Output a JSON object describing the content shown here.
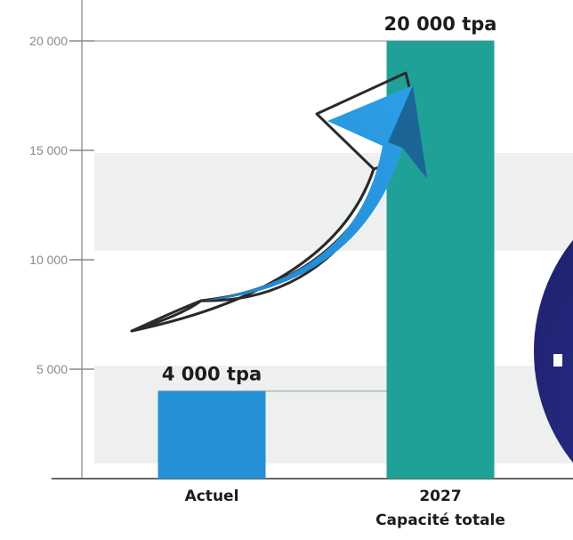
{
  "chart_data": {
    "type": "bar",
    "categories": [
      {
        "lines": [
          "Actuel"
        ]
      },
      {
        "lines": [
          "2027",
          "Capacité totale"
        ]
      }
    ],
    "values": [
      4000,
      20000
    ],
    "value_labels": [
      "4 000 tpa",
      "20 000 tpa"
    ],
    "bar_colors": [
      "#2490d6",
      "#20a197"
    ],
    "y_ticks": [
      {
        "value": 5000,
        "label": "5 000"
      },
      {
        "value": 10000,
        "label": "10 000"
      },
      {
        "value": 15000,
        "label": "15 000"
      },
      {
        "value": 20000,
        "label": "20 000"
      }
    ],
    "ylim": [
      0,
      20000
    ],
    "title": "",
    "xlabel": "",
    "ylabel": "",
    "growth_arrow_color": "#2490d6",
    "band_color": "#eef0f0",
    "circle_color": "#2a2c86"
  }
}
